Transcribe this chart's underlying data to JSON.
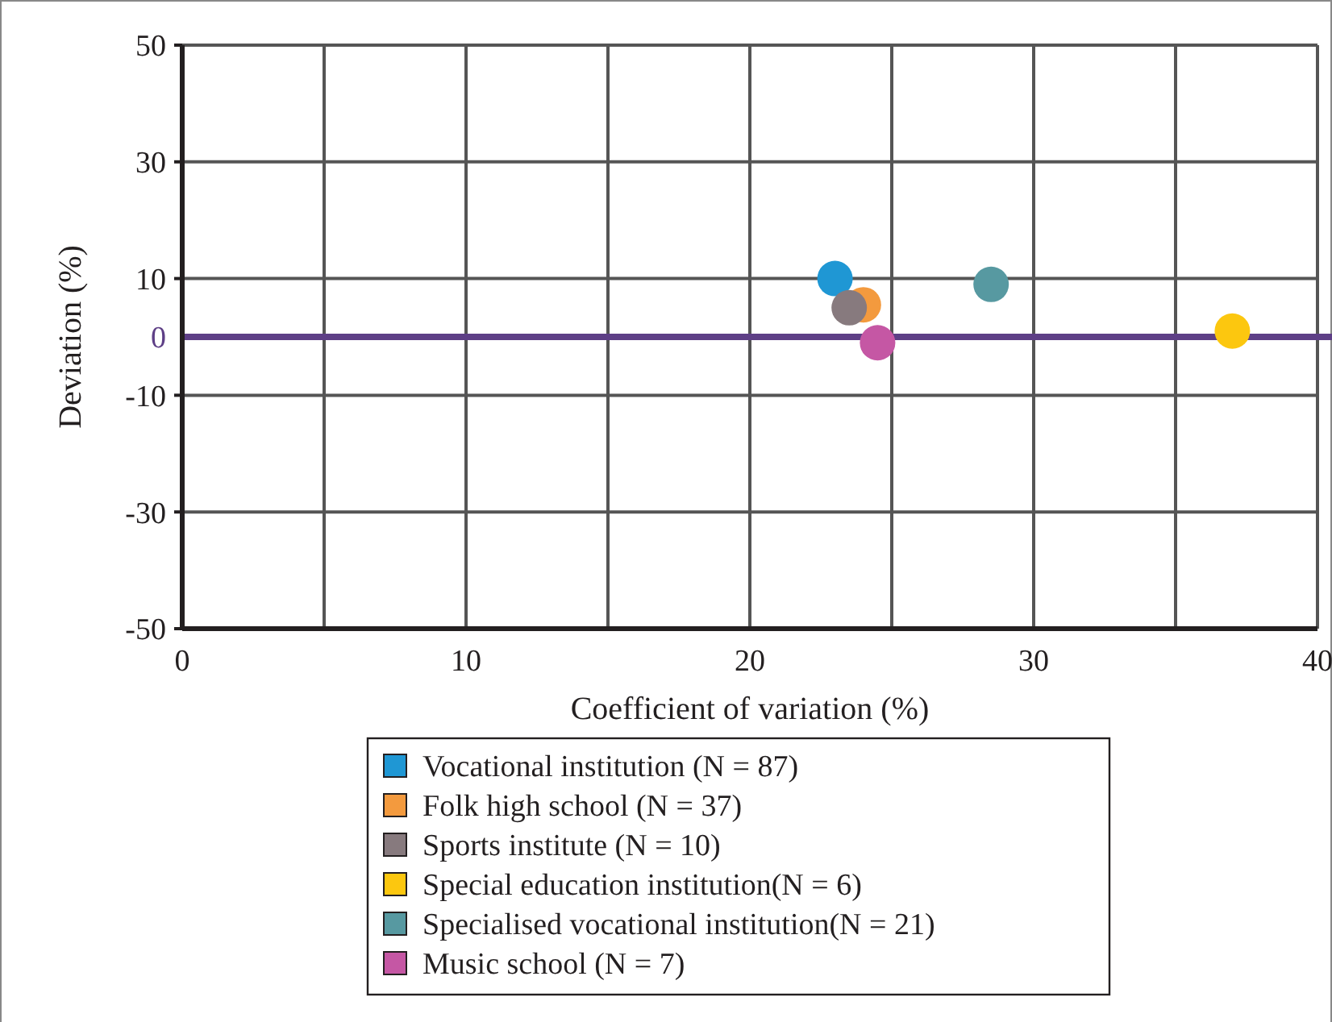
{
  "chart_data": {
    "type": "scatter",
    "xlabel": "Coefficient of variation (%)",
    "ylabel": "Deviation (%)",
    "xlim": [
      0,
      40
    ],
    "ylim": [
      -50,
      50
    ],
    "xticks": [
      0,
      {
        "value": 5,
        "label": null
      },
      10,
      {
        "value": 15,
        "label": null
      },
      20,
      {
        "value": 25,
        "label": null
      },
      30,
      {
        "value": 35,
        "label": null
      },
      40
    ],
    "yticks": [
      -50,
      -30,
      -10,
      10,
      30,
      50
    ],
    "grid": true,
    "legend": "bottom",
    "marker": "circle",
    "ref_lines": [
      {
        "axis": "y",
        "value": 0,
        "label": "0",
        "color": "#5e3f86"
      }
    ],
    "series": [
      {
        "name": "Vocational institution (N = 87)",
        "color": "#1f97d4",
        "x": [
          23
        ],
        "values": [
          10
        ]
      },
      {
        "name": "Folk high school (N = 37)",
        "color": "#f39a3e",
        "x": [
          24
        ],
        "values": [
          5.5
        ]
      },
      {
        "name": "Sports institute (N = 10)",
        "color": "#877a7e",
        "x": [
          23.5
        ],
        "values": [
          5
        ]
      },
      {
        "name": "Special education institution(N = 6)",
        "color": "#fcc70f",
        "x": [
          37
        ],
        "values": [
          1
        ]
      },
      {
        "name": "Specialised vocational institution(N = 21)",
        "color": "#5799a1",
        "x": [
          28.5
        ],
        "values": [
          9
        ]
      },
      {
        "name": "Music school (N = 7)",
        "color": "#c557a4",
        "x": [
          24.5
        ],
        "values": [
          -1
        ]
      }
    ]
  }
}
